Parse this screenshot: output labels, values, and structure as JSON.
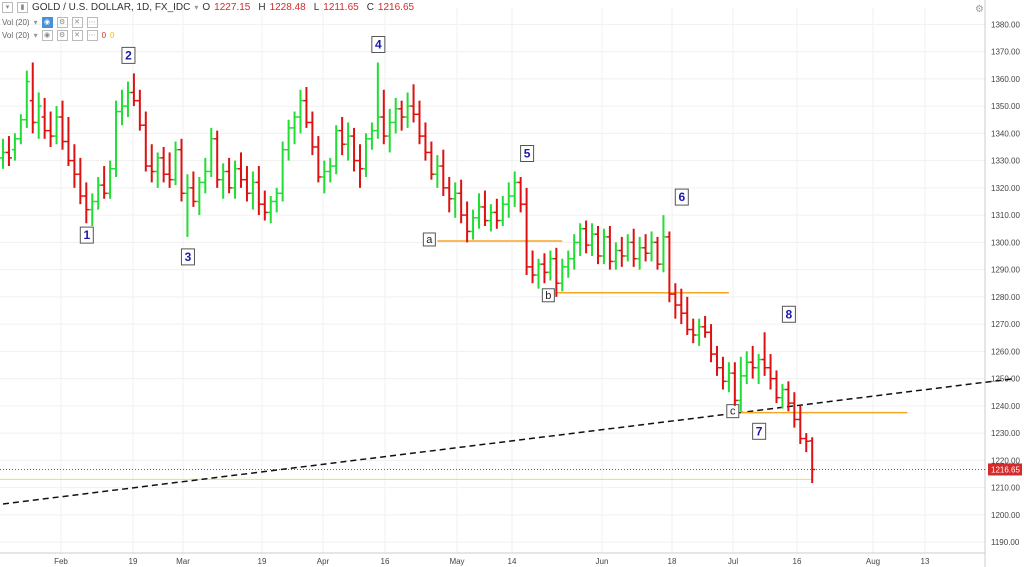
{
  "header": {
    "symbol": "GOLD / U.S. DOLLAR, 1D, FX_IDC",
    "open_label": "O",
    "open": "1227.15",
    "high_label": "H",
    "high": "1228.48",
    "low_label": "L",
    "low": "1211.65",
    "close_label": "C",
    "close": "1216.65",
    "vol_indicator": "Vol (20)",
    "vol_indicator2": "Vol (20)",
    "vol_value_1": "0",
    "vol_value_2": "0"
  },
  "colors": {
    "up": "#22dd33",
    "down": "#dd1111",
    "trendline": "#111111",
    "support": "#f5a623",
    "last_price": "#d12b2b",
    "yellow_line": "#f0e24a",
    "label_text": "#1a1aa8"
  },
  "chart_data": {
    "type": "ohlc",
    "ylim": [
      1186,
      1386
    ],
    "y_ticks": [
      "1190.00",
      "1200.00",
      "1210.00",
      "1220.00",
      "1230.00",
      "1240.00",
      "1250.00",
      "1260.00",
      "1270.00",
      "1280.00",
      "1290.00",
      "1300.00",
      "1310.00",
      "1320.00",
      "1330.00",
      "1340.00",
      "1350.00",
      "1360.00",
      "1370.00",
      "1380.00"
    ],
    "y_tick_values": [
      1190,
      1200,
      1210,
      1220,
      1230,
      1240,
      1250,
      1260,
      1270,
      1280,
      1290,
      1300,
      1310,
      1320,
      1330,
      1340,
      1350,
      1360,
      1370,
      1380
    ],
    "x_ticks": [
      "Feb",
      "19",
      "Mar",
      "19",
      "Apr",
      "16",
      "May",
      "14",
      "Jun",
      "18",
      "Jul",
      "16",
      "Aug",
      "13"
    ],
    "x_tick_dates": [
      "2018-02-01",
      "2018-02-19",
      "2018-03-01",
      "2018-03-19",
      "2018-04-02",
      "2018-04-16",
      "2018-05-01",
      "2018-05-14",
      "2018-06-01",
      "2018-06-18",
      "2018-07-02",
      "2018-07-16",
      "2018-08-01",
      "2018-08-13"
    ],
    "last_price_label": "1216.65",
    "last_price": 1216.65,
    "yellow_level": 1213,
    "bars": [
      [
        1331,
        1338,
        1327,
        1333
      ],
      [
        1333,
        1339,
        1328,
        1331
      ],
      [
        1334,
        1340,
        1330,
        1338
      ],
      [
        1338,
        1347,
        1336,
        1345
      ],
      [
        1345,
        1363,
        1342,
        1359
      ],
      [
        1352,
        1366,
        1340,
        1344
      ],
      [
        1344,
        1355,
        1338,
        1350
      ],
      [
        1346,
        1353,
        1338,
        1341
      ],
      [
        1341,
        1348,
        1335,
        1339
      ],
      [
        1339,
        1350,
        1336,
        1346
      ],
      [
        1346,
        1352,
        1334,
        1337
      ],
      [
        1337,
        1346,
        1328,
        1330
      ],
      [
        1330,
        1336,
        1320,
        1325
      ],
      [
        1325,
        1331,
        1314,
        1317
      ],
      [
        1317,
        1322,
        1307,
        1312
      ],
      [
        1312,
        1318,
        1306,
        1315
      ],
      [
        1315,
        1324,
        1312,
        1321
      ],
      [
        1321,
        1328,
        1316,
        1318
      ],
      [
        1318,
        1330,
        1316,
        1327
      ],
      [
        1327,
        1352,
        1324,
        1348
      ],
      [
        1348,
        1356,
        1343,
        1350
      ],
      [
        1350,
        1359,
        1346,
        1355
      ],
      [
        1355,
        1362,
        1350,
        1352
      ],
      [
        1352,
        1356,
        1341,
        1343
      ],
      [
        1343,
        1348,
        1326,
        1328
      ],
      [
        1328,
        1336,
        1322,
        1326
      ],
      [
        1326,
        1333,
        1320,
        1331
      ],
      [
        1331,
        1335,
        1322,
        1325
      ],
      [
        1325,
        1333,
        1320,
        1323
      ],
      [
        1323,
        1337,
        1321,
        1334
      ],
      [
        1334,
        1338,
        1315,
        1318
      ],
      [
        1318,
        1325,
        1302,
        1320
      ],
      [
        1320,
        1326,
        1313,
        1315
      ],
      [
        1315,
        1324,
        1310,
        1322
      ],
      [
        1322,
        1331,
        1318,
        1326
      ],
      [
        1326,
        1342,
        1324,
        1338
      ],
      [
        1338,
        1341,
        1320,
        1323
      ],
      [
        1323,
        1329,
        1316,
        1326
      ],
      [
        1326,
        1331,
        1318,
        1320
      ],
      [
        1320,
        1330,
        1316,
        1327
      ],
      [
        1327,
        1333,
        1320,
        1323
      ],
      [
        1323,
        1328,
        1315,
        1318
      ],
      [
        1318,
        1326,
        1312,
        1322
      ],
      [
        1322,
        1328,
        1310,
        1314
      ],
      [
        1314,
        1319,
        1308,
        1311
      ],
      [
        1311,
        1317,
        1307,
        1315
      ],
      [
        1315,
        1320,
        1311,
        1318
      ],
      [
        1318,
        1337,
        1315,
        1334
      ],
      [
        1334,
        1345,
        1330,
        1342
      ],
      [
        1342,
        1348,
        1336,
        1346
      ],
      [
        1346,
        1356,
        1340,
        1352
      ],
      [
        1352,
        1357,
        1342,
        1344
      ],
      [
        1344,
        1348,
        1332,
        1335
      ],
      [
        1335,
        1339,
        1322,
        1324
      ],
      [
        1324,
        1330,
        1318,
        1326
      ],
      [
        1326,
        1331,
        1322,
        1328
      ],
      [
        1328,
        1343,
        1325,
        1341
      ],
      [
        1341,
        1346,
        1332,
        1336
      ],
      [
        1336,
        1344,
        1330,
        1339
      ],
      [
        1339,
        1342,
        1326,
        1330
      ],
      [
        1330,
        1336,
        1320,
        1327
      ],
      [
        1327,
        1340,
        1324,
        1338
      ],
      [
        1338,
        1344,
        1334,
        1341
      ],
      [
        1341,
        1366,
        1338,
        1346
      ],
      [
        1346,
        1356,
        1336,
        1339
      ],
      [
        1339,
        1349,
        1333,
        1344
      ],
      [
        1344,
        1353,
        1340,
        1349
      ],
      [
        1349,
        1352,
        1341,
        1346
      ],
      [
        1346,
        1355,
        1342,
        1350
      ],
      [
        1350,
        1358,
        1344,
        1347
      ],
      [
        1347,
        1352,
        1336,
        1339
      ],
      [
        1339,
        1344,
        1330,
        1333
      ],
      [
        1333,
        1337,
        1323,
        1325
      ],
      [
        1325,
        1332,
        1320,
        1328
      ],
      [
        1328,
        1334,
        1317,
        1320
      ],
      [
        1320,
        1324,
        1311,
        1316
      ],
      [
        1316,
        1322,
        1309,
        1318
      ],
      [
        1318,
        1323,
        1307,
        1310
      ],
      [
        1310,
        1315,
        1300,
        1304
      ],
      [
        1304,
        1312,
        1301,
        1309
      ],
      [
        1309,
        1318,
        1305,
        1313
      ],
      [
        1313,
        1319,
        1306,
        1308
      ],
      [
        1308,
        1314,
        1304,
        1311
      ],
      [
        1311,
        1316,
        1305,
        1308
      ],
      [
        1308,
        1317,
        1306,
        1314
      ],
      [
        1314,
        1322,
        1309,
        1317
      ],
      [
        1317,
        1326,
        1313,
        1322
      ],
      [
        1322,
        1324,
        1311,
        1314
      ],
      [
        1314,
        1320,
        1288,
        1291
      ],
      [
        1291,
        1297,
        1285,
        1288
      ],
      [
        1288,
        1294,
        1283,
        1292
      ],
      [
        1292,
        1296,
        1285,
        1289
      ],
      [
        1289,
        1297,
        1286,
        1294
      ],
      [
        1294,
        1298,
        1280,
        1285
      ],
      [
        1285,
        1294,
        1282,
        1291
      ],
      [
        1291,
        1297,
        1287,
        1294
      ],
      [
        1294,
        1303,
        1290,
        1300
      ],
      [
        1300,
        1307,
        1295,
        1305
      ],
      [
        1305,
        1308,
        1296,
        1299
      ],
      [
        1299,
        1307,
        1295,
        1303
      ],
      [
        1303,
        1306,
        1292,
        1295
      ],
      [
        1295,
        1305,
        1292,
        1302
      ],
      [
        1302,
        1306,
        1290,
        1293
      ],
      [
        1293,
        1300,
        1290,
        1297
      ],
      [
        1297,
        1302,
        1291,
        1295
      ],
      [
        1295,
        1303,
        1293,
        1300
      ],
      [
        1300,
        1305,
        1291,
        1294
      ],
      [
        1294,
        1302,
        1290,
        1298
      ],
      [
        1298,
        1303,
        1293,
        1296
      ],
      [
        1296,
        1304,
        1293,
        1300
      ],
      [
        1300,
        1302,
        1290,
        1292
      ],
      [
        1292,
        1310,
        1289,
        1302
      ],
      [
        1302,
        1304,
        1278,
        1281
      ],
      [
        1281,
        1285,
        1272,
        1277
      ],
      [
        1277,
        1283,
        1270,
        1274
      ],
      [
        1274,
        1280,
        1266,
        1268
      ],
      [
        1268,
        1272,
        1263,
        1266
      ],
      [
        1266,
        1272,
        1262,
        1269
      ],
      [
        1269,
        1273,
        1265,
        1267
      ],
      [
        1267,
        1270,
        1256,
        1259
      ],
      [
        1259,
        1262,
        1251,
        1254
      ],
      [
        1254,
        1258,
        1246,
        1249
      ],
      [
        1249,
        1256,
        1245,
        1252
      ],
      [
        1252,
        1256,
        1240,
        1242
      ],
      [
        1242,
        1258,
        1238,
        1251
      ],
      [
        1251,
        1260,
        1248,
        1256
      ],
      [
        1256,
        1262,
        1250,
        1254
      ],
      [
        1254,
        1259,
        1248,
        1257
      ],
      [
        1257,
        1267,
        1251,
        1254
      ],
      [
        1254,
        1259,
        1246,
        1250
      ],
      [
        1250,
        1253,
        1241,
        1243
      ],
      [
        1243,
        1248,
        1239,
        1246
      ],
      [
        1246,
        1249,
        1238,
        1241
      ],
      [
        1241,
        1245,
        1232,
        1235
      ],
      [
        1235,
        1240,
        1226,
        1228
      ],
      [
        1228,
        1230,
        1223,
        1227
      ],
      [
        1227.15,
        1228.48,
        1211.65,
        1216.65
      ]
    ],
    "labels": [
      {
        "text": "1",
        "date_index": 14,
        "price": 1310,
        "pos": "below"
      },
      {
        "text": "2",
        "date_index": 21,
        "price": 1362,
        "pos": "above"
      },
      {
        "text": "3",
        "date_index": 31,
        "price": 1302,
        "pos": "below"
      },
      {
        "text": "4",
        "date_index": 63,
        "price": 1366,
        "pos": "above"
      },
      {
        "text": "5",
        "date_index": 88,
        "price": 1326,
        "pos": "above"
      },
      {
        "text": "6",
        "date_index": 114,
        "price": 1310,
        "pos": "above"
      },
      {
        "text": "7",
        "date_index": 127,
        "price": 1238,
        "pos": "below"
      },
      {
        "text": "8",
        "date_index": 132,
        "price": 1267,
        "pos": "above"
      }
    ],
    "boxes": [
      {
        "text": "a",
        "start": 73,
        "end": 94,
        "price": 1300.5,
        "label_side": "left"
      },
      {
        "text": "b",
        "start": 93,
        "end": 122,
        "price": 1281.5,
        "label_side": "left-below"
      },
      {
        "text": "c",
        "start": 124,
        "end": 152,
        "price": 1237.5,
        "label_side": "left"
      }
    ],
    "trendline": {
      "start_index": 0,
      "start_price": 1204,
      "end_index": 170,
      "end_price": 1250
    }
  }
}
